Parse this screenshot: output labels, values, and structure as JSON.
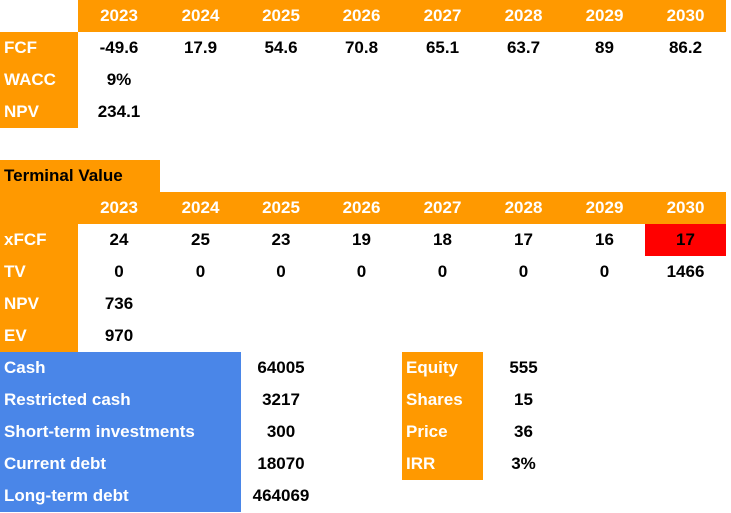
{
  "dcf": {
    "years": [
      "2023",
      "2024",
      "2025",
      "2026",
      "2027",
      "2028",
      "2029",
      "2030"
    ],
    "rows": [
      {
        "label": "FCF",
        "cells": [
          "-49.6",
          "17.9",
          "54.6",
          "70.8",
          "65.1",
          "63.7",
          "89",
          "86.2"
        ]
      },
      {
        "label": "WACC",
        "cells": [
          "9%"
        ]
      },
      {
        "label": "NPV",
        "cells": [
          "234.1"
        ]
      }
    ]
  },
  "terminal": {
    "title": "Terminal Value",
    "years": [
      "2023",
      "2024",
      "2025",
      "2026",
      "2027",
      "2028",
      "2029",
      "2030"
    ],
    "rows": [
      {
        "label": "xFCF",
        "cells": [
          "24",
          "25",
          "23",
          "19",
          "18",
          "17",
          "16",
          "17"
        ]
      },
      {
        "label": "TV",
        "cells": [
          "0",
          "0",
          "0",
          "0",
          "0",
          "0",
          "0",
          "1466"
        ]
      },
      {
        "label": "NPV",
        "cells": [
          "736"
        ]
      },
      {
        "label": "EV",
        "cells": [
          "970"
        ]
      }
    ]
  },
  "balance": {
    "rows": [
      {
        "label": "Cash",
        "value": "64005"
      },
      {
        "label": "Restricted cash",
        "value": "3217"
      },
      {
        "label": "Short-term investments",
        "value": "300"
      },
      {
        "label": "Current debt",
        "value": "18070"
      },
      {
        "label": "Long-term debt",
        "value": "464069"
      }
    ]
  },
  "valuation": {
    "rows": [
      {
        "label": "Equity",
        "value": "555"
      },
      {
        "label": "Shares",
        "value": "15"
      },
      {
        "label": "Price",
        "value": "36"
      },
      {
        "label": "IRR",
        "value": "3%"
      }
    ]
  }
}
